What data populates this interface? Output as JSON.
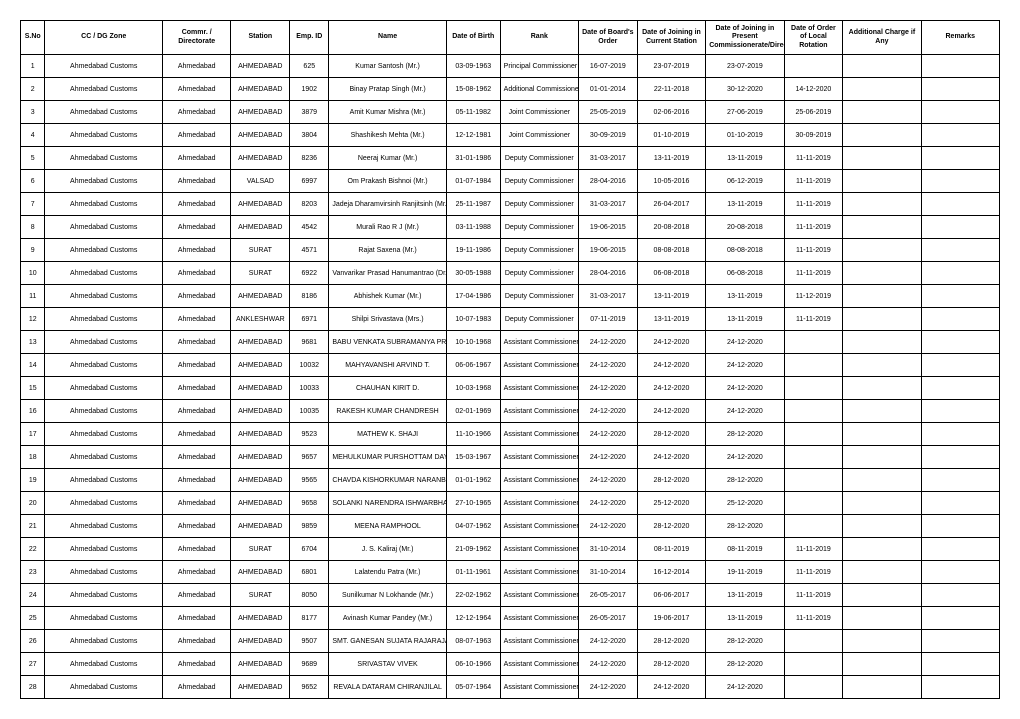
{
  "columns": [
    "S.No",
    "CC / DG Zone",
    "Commr. / Directorate",
    "Station",
    "Emp. ID",
    "Name",
    "Date of Birth",
    "Rank",
    "Date of Board's Order",
    "Date of Joining in Current Station",
    "Date of Joining in Present Commissionerate/Directorate",
    "Date of Order of Local Rotation",
    "Additional Charge if Any",
    "Remarks"
  ],
  "rows": [
    [
      "1",
      "Ahmedabad Customs",
      "Ahmedabad",
      "AHMEDABAD",
      "625",
      "Kumar Santosh (Mr.)",
      "03-09-1963",
      "Principal Commissioner",
      "16-07-2019",
      "23-07-2019",
      "23-07-2019",
      "",
      "",
      ""
    ],
    [
      "2",
      "Ahmedabad Customs",
      "Ahmedabad",
      "AHMEDABAD",
      "1902",
      "Binay Pratap Singh (Mr.)",
      "15-08-1962",
      "Additional Commissioner",
      "01-01-2014",
      "22-11-2018",
      "30-12-2020",
      "14-12-2020",
      "",
      ""
    ],
    [
      "3",
      "Ahmedabad Customs",
      "Ahmedabad",
      "AHMEDABAD",
      "3879",
      "Amit Kumar Mishra (Mr.)",
      "05-11-1982",
      "Joint Commissioner",
      "25-05-2019",
      "02-06-2016",
      "27-06-2019",
      "25-06-2019",
      "",
      ""
    ],
    [
      "4",
      "Ahmedabad Customs",
      "Ahmedabad",
      "AHMEDABAD",
      "3804",
      "Shashikesh Mehta (Mr.)",
      "12-12-1981",
      "Joint Commissioner",
      "30-09-2019",
      "01-10-2019",
      "01-10-2019",
      "30-09-2019",
      "",
      ""
    ],
    [
      "5",
      "Ahmedabad Customs",
      "Ahmedabad",
      "AHMEDABAD",
      "8236",
      "Neeraj Kumar (Mr.)",
      "31-01-1986",
      "Deputy Commissioner",
      "31-03-2017",
      "13-11-2019",
      "13-11-2019",
      "11-11-2019",
      "",
      ""
    ],
    [
      "6",
      "Ahmedabad Customs",
      "Ahmedabad",
      "VALSAD",
      "6997",
      "Om Prakash Bishnoi (Mr.)",
      "01-07-1984",
      "Deputy Commissioner",
      "28-04-2016",
      "10-05-2016",
      "06-12-2019",
      "11-11-2019",
      "",
      ""
    ],
    [
      "7",
      "Ahmedabad Customs",
      "Ahmedabad",
      "AHMEDABAD",
      "8203",
      "Jadeja Dharamvirsinh Ranjitsinh (Mr.)",
      "25-11-1987",
      "Deputy Commissioner",
      "31-03-2017",
      "26-04-2017",
      "13-11-2019",
      "11-11-2019",
      "",
      ""
    ],
    [
      "8",
      "Ahmedabad Customs",
      "Ahmedabad",
      "AHMEDABAD",
      "4542",
      "Murali Rao R J (Mr.)",
      "03-11-1988",
      "Deputy Commissioner",
      "19-06-2015",
      "20-08-2018",
      "20-08-2018",
      "11-11-2019",
      "",
      ""
    ],
    [
      "9",
      "Ahmedabad Customs",
      "Ahmedabad",
      "SURAT",
      "4571",
      "Rajat Saxena (Mr.)",
      "19-11-1986",
      "Deputy Commissioner",
      "19-06-2015",
      "08-08-2018",
      "08-08-2018",
      "11-11-2019",
      "",
      ""
    ],
    [
      "10",
      "Ahmedabad Customs",
      "Ahmedabad",
      "SURAT",
      "6922",
      "Vanvarikar Prasad Hanumantrao (Dr.)",
      "30-05-1988",
      "Deputy Commissioner",
      "28-04-2016",
      "06-08-2018",
      "06-08-2018",
      "11-11-2019",
      "",
      ""
    ],
    [
      "11",
      "Ahmedabad Customs",
      "Ahmedabad",
      "AHMEDABAD",
      "8186",
      "Abhishek Kumar (Mr.)",
      "17-04-1986",
      "Deputy Commissioner",
      "31-03-2017",
      "13-11-2019",
      "13-11-2019",
      "11-12-2019",
      "",
      ""
    ],
    [
      "12",
      "Ahmedabad Customs",
      "Ahmedabad",
      "ANKLESHWAR",
      "6971",
      "Shilpi Srivastava (Mrs.)",
      "10-07-1983",
      "Deputy Commissioner",
      "07-11-2019",
      "13-11-2019",
      "13-11-2019",
      "11-11-2019",
      "",
      ""
    ],
    [
      "13",
      "Ahmedabad Customs",
      "Ahmedabad",
      "AHMEDABAD",
      "9681",
      "BABU VENKATA SUBRAMANYA PRASAD",
      "10-10-1968",
      "Assistant Commissioner",
      "24-12-2020",
      "24-12-2020",
      "24-12-2020",
      "",
      "",
      ""
    ],
    [
      "14",
      "Ahmedabad Customs",
      "Ahmedabad",
      "AHMEDABAD",
      "10032",
      "MAHYAVANSHI ARVIND T.",
      "06-06-1967",
      "Assistant Commissioner",
      "24-12-2020",
      "24-12-2020",
      "24-12-2020",
      "",
      "",
      ""
    ],
    [
      "15",
      "Ahmedabad Customs",
      "Ahmedabad",
      "AHMEDABAD",
      "10033",
      "CHAUHAN KIRIT D.",
      "10-03-1968",
      "Assistant Commissioner",
      "24-12-2020",
      "24-12-2020",
      "24-12-2020",
      "",
      "",
      ""
    ],
    [
      "16",
      "Ahmedabad Customs",
      "Ahmedabad",
      "AHMEDABAD",
      "10035",
      "RAKESH KUMAR CHANDRESH",
      "02-01-1969",
      "Assistant Commissioner",
      "24-12-2020",
      "24-12-2020",
      "24-12-2020",
      "",
      "",
      ""
    ],
    [
      "17",
      "Ahmedabad Customs",
      "Ahmedabad",
      "AHMEDABAD",
      "9523",
      "MATHEW K. SHAJI",
      "11-10-1966",
      "Assistant Commissioner",
      "24-12-2020",
      "28-12-2020",
      "28-12-2020",
      "",
      "",
      ""
    ],
    [
      "18",
      "Ahmedabad Customs",
      "Ahmedabad",
      "AHMEDABAD",
      "9657",
      "MEHULKUMAR PURSHOTTAM DAYAL",
      "15-03-1967",
      "Assistant Commissioner",
      "24-12-2020",
      "24-12-2020",
      "24-12-2020",
      "",
      "",
      ""
    ],
    [
      "19",
      "Ahmedabad Customs",
      "Ahmedabad",
      "AHMEDABAD",
      "9565",
      "CHAVDA KISHORKUMAR NARANBHAI",
      "01-01-1962",
      "Assistant Commissioner",
      "24-12-2020",
      "28-12-2020",
      "28-12-2020",
      "",
      "",
      ""
    ],
    [
      "20",
      "Ahmedabad Customs",
      "Ahmedabad",
      "AHMEDABAD",
      "9658",
      "SOLANKI NARENDRA ISHWARBHAI",
      "27-10-1965",
      "Assistant Commissioner",
      "24-12-2020",
      "25-12-2020",
      "25-12-2020",
      "",
      "",
      ""
    ],
    [
      "21",
      "Ahmedabad Customs",
      "Ahmedabad",
      "AHMEDABAD",
      "9859",
      "MEENA RAMPHOOL",
      "04-07-1962",
      "Assistant Commissioner",
      "24-12-2020",
      "28-12-2020",
      "28-12-2020",
      "",
      "",
      ""
    ],
    [
      "22",
      "Ahmedabad Customs",
      "Ahmedabad",
      "SURAT",
      "6704",
      "J. S. Kaliraj (Mr.)",
      "21-09-1962",
      "Assistant Commissioner",
      "31-10-2014",
      "08-11-2019",
      "08-11-2019",
      "11-11-2019",
      "",
      ""
    ],
    [
      "23",
      "Ahmedabad Customs",
      "Ahmedabad",
      "AHMEDABAD",
      "6801",
      "Lalatendu Patra (Mr.)",
      "01-11-1961",
      "Assistant Commissioner",
      "31-10-2014",
      "16-12-2014",
      "19-11-2019",
      "11-11-2019",
      "",
      ""
    ],
    [
      "24",
      "Ahmedabad Customs",
      "Ahmedabad",
      "SURAT",
      "8050",
      "Sunilkumar N Lokhande (Mr.)",
      "22-02-1962",
      "Assistant Commissioner",
      "26-05-2017",
      "06-06-2017",
      "13-11-2019",
      "11-11-2019",
      "",
      ""
    ],
    [
      "25",
      "Ahmedabad Customs",
      "Ahmedabad",
      "AHMEDABAD",
      "8177",
      "Avinash Kumar Pandey (Mr.)",
      "12-12-1964",
      "Assistant Commissioner",
      "26-05-2017",
      "19-06-2017",
      "13-11-2019",
      "11-11-2019",
      "",
      ""
    ],
    [
      "26",
      "Ahmedabad Customs",
      "Ahmedabad",
      "AHMEDABAD",
      "9507",
      "SMT. GANESAN SUJATA RAJARAJAN",
      "08-07-1963",
      "Assistant Commissioner",
      "24-12-2020",
      "28-12-2020",
      "28-12-2020",
      "",
      "",
      ""
    ],
    [
      "27",
      "Ahmedabad Customs",
      "Ahmedabad",
      "AHMEDABAD",
      "9689",
      "SRIVASTAV VIVEK",
      "06-10-1966",
      "Assistant Commissioner",
      "24-12-2020",
      "28-12-2020",
      "28-12-2020",
      "",
      "",
      ""
    ],
    [
      "28",
      "Ahmedabad Customs",
      "Ahmedabad",
      "AHMEDABAD",
      "9652",
      "REVALA DATARAM CHIRANJILAL",
      "05-07-1964",
      "Assistant Commissioner",
      "24-12-2020",
      "24-12-2020",
      "24-12-2020",
      "",
      "",
      ""
    ]
  ]
}
